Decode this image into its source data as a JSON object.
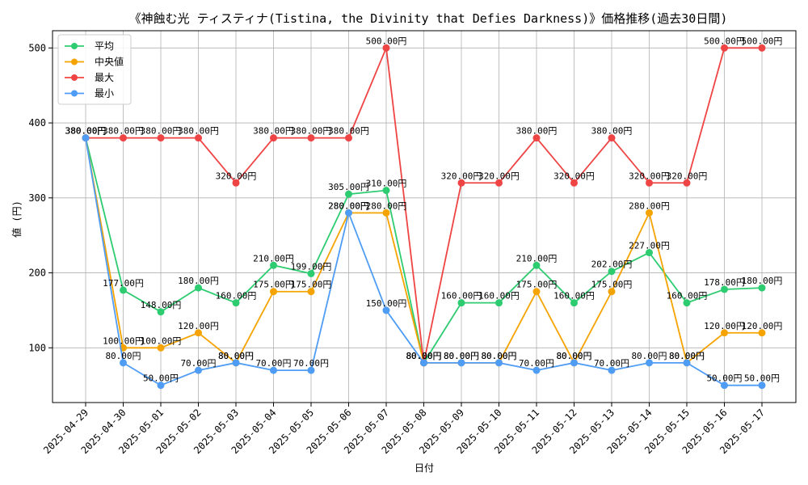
{
  "chart_data": {
    "type": "line",
    "title": "《神蝕む光 ティスティナ(Tistina, the Divinity that Defies Darkness)》価格推移(過去30日間)",
    "xlabel": "日付",
    "ylabel": "値 (円)",
    "x": [
      "2025-04-29",
      "2025-04-30",
      "2025-05-01",
      "2025-05-02",
      "2025-05-03",
      "2025-05-04",
      "2025-05-05",
      "2025-05-06",
      "2025-05-07",
      "2025-05-08",
      "2025-05-09",
      "2025-05-10",
      "2025-05-11",
      "2025-05-12",
      "2025-05-13",
      "2025-05-14",
      "2025-05-15",
      "2025-05-16",
      "2025-05-17"
    ],
    "ylim": [
      27,
      523
    ],
    "yticks": [
      100,
      200,
      300,
      400,
      500
    ],
    "grid": true,
    "legend_position": "top-left",
    "value_suffix": "円",
    "series": [
      {
        "name": "平均",
        "color": "#2ecc71",
        "values": [
          380,
          177,
          148,
          180,
          160,
          210,
          199,
          305,
          310,
          80,
          160,
          160,
          210,
          160,
          202,
          227,
          160,
          178,
          180
        ]
      },
      {
        "name": "中央値",
        "color": "#f5a300",
        "values": [
          380,
          100,
          100,
          120,
          80,
          175,
          175,
          280,
          280,
          80,
          80,
          80,
          175,
          80,
          175,
          280,
          80,
          120,
          120
        ]
      },
      {
        "name": "最大",
        "color": "#ef4444",
        "values": [
          380,
          380,
          380,
          380,
          320,
          380,
          380,
          380,
          500,
          80,
          320,
          320,
          380,
          320,
          380,
          320,
          320,
          500,
          500
        ]
      },
      {
        "name": "最小",
        "color": "#4f9cf5",
        "values": [
          380,
          80,
          50,
          70,
          80,
          70,
          70,
          280,
          150,
          80,
          80,
          80,
          70,
          80,
          70,
          80,
          80,
          50,
          50
        ]
      }
    ]
  }
}
